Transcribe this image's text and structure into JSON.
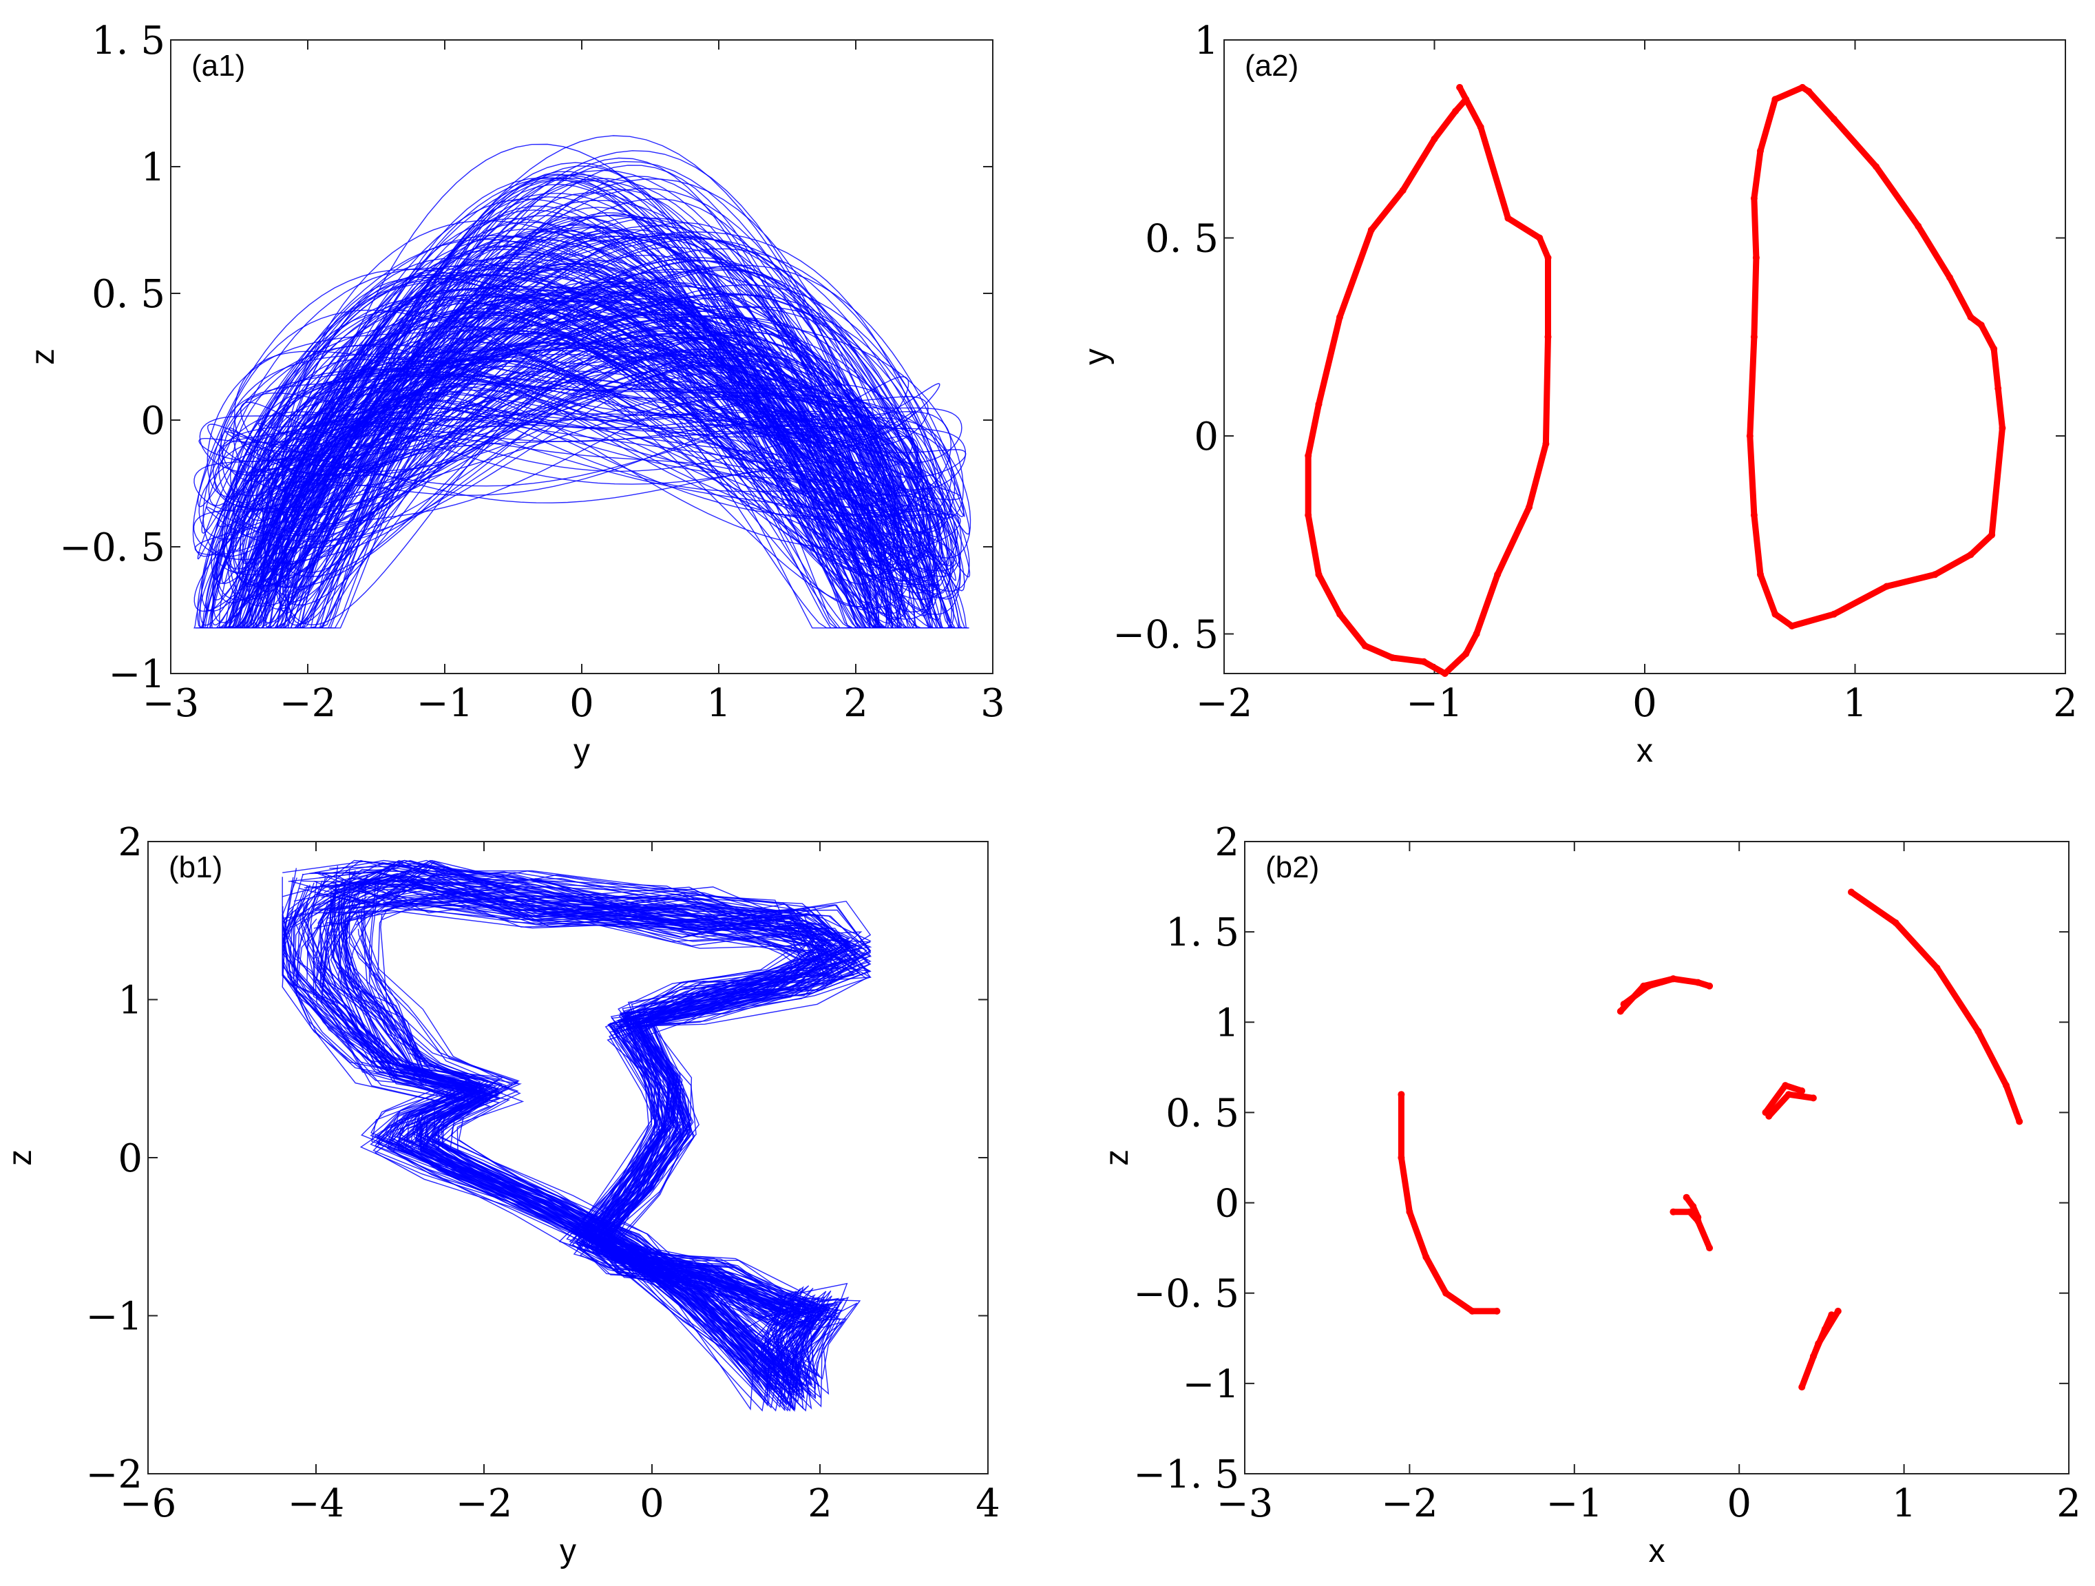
{
  "chart_data": [
    {
      "id": "a1",
      "type": "line",
      "panel_label": "(a1)",
      "xlabel": "y",
      "ylabel": "z",
      "xlim": [
        -3,
        3
      ],
      "ylim": [
        -1,
        1.5
      ],
      "xticks": [
        -3,
        -2,
        -1,
        0,
        1,
        2,
        3
      ],
      "xtick_labels": [
        "−3",
        "−2",
        "−1",
        "0",
        "1",
        "2",
        "3"
      ],
      "yticks": [
        -1,
        -0.5,
        0,
        0.5,
        1,
        1.5
      ],
      "ytick_labels": [
        "−1",
        "−0. 5",
        "0",
        "0. 5",
        "1",
        "1. 5"
      ],
      "color": "#0000ff",
      "attractor": {
        "kind": "double-scroll trajectory",
        "y_range": [
          -2.9,
          2.9
        ],
        "z_range": [
          -0.82,
          1.13
        ]
      }
    },
    {
      "id": "a2",
      "type": "scatter",
      "panel_label": "(a2)",
      "xlabel": "x",
      "ylabel": "y",
      "xlim": [
        -2,
        2
      ],
      "ylim": [
        -0.6,
        1
      ],
      "xticks": [
        -2,
        -1,
        0,
        1,
        2
      ],
      "xtick_labels": [
        "−2",
        "−1",
        "0",
        "1",
        "2"
      ],
      "yticks": [
        -0.5,
        0,
        0.5,
        1
      ],
      "ytick_labels": [
        "−0. 5",
        "0",
        "0. 5",
        "1"
      ],
      "color": "#ff0000",
      "series": [
        {
          "x": [
            -0.88,
            -0.85,
            -0.9,
            -1.0,
            -1.15,
            -1.3,
            -1.45,
            -1.55,
            -1.6,
            -1.6,
            -1.55,
            -1.45,
            -1.33,
            -1.2,
            -1.05,
            -0.95,
            -0.85,
            -0.8,
            -0.7,
            -0.55,
            -0.47,
            -0.46,
            -0.46,
            -0.5,
            -0.65,
            -0.78,
            -0.88
          ],
          "y": [
            0.88,
            0.85,
            0.82,
            0.75,
            0.62,
            0.52,
            0.3,
            0.08,
            -0.05,
            -0.2,
            -0.35,
            -0.45,
            -0.53,
            -0.56,
            -0.57,
            -0.6,
            -0.55,
            -0.5,
            -0.35,
            -0.18,
            -0.02,
            0.25,
            0.45,
            0.5,
            0.55,
            0.78,
            0.88
          ]
        },
        {
          "x": [
            0.75,
            0.62,
            0.55,
            0.52,
            0.53,
            0.52,
            0.5,
            0.52,
            0.55,
            0.62,
            0.7,
            0.9,
            1.15,
            1.38,
            1.55,
            1.65,
            1.7,
            1.68,
            1.66,
            1.6,
            1.55,
            1.45,
            1.3,
            1.1,
            0.9,
            0.78,
            0.75
          ],
          "y": [
            0.88,
            0.85,
            0.72,
            0.6,
            0.45,
            0.25,
            0.0,
            -0.2,
            -0.35,
            -0.45,
            -0.48,
            -0.45,
            -0.38,
            -0.35,
            -0.3,
            -0.25,
            0.02,
            0.12,
            0.22,
            0.28,
            0.3,
            0.4,
            0.53,
            0.68,
            0.8,
            0.87,
            0.88
          ]
        }
      ]
    },
    {
      "id": "b1",
      "type": "line",
      "panel_label": "(b1)",
      "xlabel": "y",
      "ylabel": "z",
      "xlim": [
        -6,
        4
      ],
      "ylim": [
        -2,
        2
      ],
      "xticks": [
        -6,
        -4,
        -2,
        0,
        2,
        4
      ],
      "xtick_labels": [
        "−6",
        "−4",
        "−2",
        "0",
        "2",
        "4"
      ],
      "yticks": [
        -2,
        -1,
        0,
        1,
        2
      ],
      "ytick_labels": [
        "−2",
        "−1",
        "0",
        "1",
        "2"
      ],
      "color": "#0000ff",
      "attractor": {
        "kind": "single-scroll trajectory",
        "y_range": [
          -4.4,
          2.6
        ],
        "z_range": [
          -1.6,
          1.88
        ]
      }
    },
    {
      "id": "b2",
      "type": "scatter",
      "panel_label": "(b2)",
      "xlabel": "x",
      "ylabel": "z",
      "xlim": [
        -3,
        2
      ],
      "ylim": [
        -1.5,
        2
      ],
      "xticks": [
        -3,
        -2,
        -1,
        0,
        1,
        2
      ],
      "xtick_labels": [
        "−3",
        "−2",
        "−1",
        "0",
        "1",
        "2"
      ],
      "yticks": [
        -1.5,
        -1,
        -0.5,
        0,
        0.5,
        1,
        1.5,
        2
      ],
      "ytick_labels": [
        "−1. 5",
        "−1",
        "−0. 5",
        "0",
        "0. 5",
        "1",
        "1. 5",
        "2"
      ],
      "color": "#ff0000",
      "series": [
        {
          "x": [
            -2.05,
            -2.05,
            -2.0,
            -1.9,
            -1.78,
            -1.62,
            -1.47
          ],
          "y": [
            0.6,
            0.25,
            -0.05,
            -0.3,
            -0.5,
            -0.6,
            -0.6
          ]
        },
        {
          "x": [
            0.68,
            0.95,
            1.2,
            1.45,
            1.62,
            1.7
          ],
          "y": [
            1.72,
            1.55,
            1.3,
            0.95,
            0.65,
            0.45
          ]
        },
        {
          "x": [
            -0.72,
            -0.58,
            -0.4,
            -0.25,
            -0.18
          ],
          "y": [
            1.06,
            1.2,
            1.24,
            1.22,
            1.2
          ]
        },
        {
          "x": [
            -0.7,
            -0.55,
            -0.4
          ],
          "y": [
            1.1,
            1.2,
            1.24
          ]
        },
        {
          "x": [
            0.16,
            0.28,
            0.38
          ],
          "y": [
            0.5,
            0.65,
            0.62
          ]
        },
        {
          "x": [
            0.18,
            0.3,
            0.45
          ],
          "y": [
            0.48,
            0.6,
            0.58
          ]
        },
        {
          "x": [
            -0.4,
            -0.3,
            -0.25,
            -0.18
          ],
          "y": [
            -0.05,
            -0.05,
            -0.1,
            -0.25
          ]
        },
        {
          "x": [
            -0.32,
            -0.28,
            -0.25
          ],
          "y": [
            0.03,
            -0.02,
            -0.08
          ]
        },
        {
          "x": [
            0.38,
            0.48,
            0.6
          ],
          "y": [
            -1.02,
            -0.78,
            -0.6
          ]
        },
        {
          "x": [
            0.45,
            0.52,
            0.56
          ],
          "y": [
            -0.85,
            -0.7,
            -0.62
          ]
        }
      ]
    }
  ]
}
